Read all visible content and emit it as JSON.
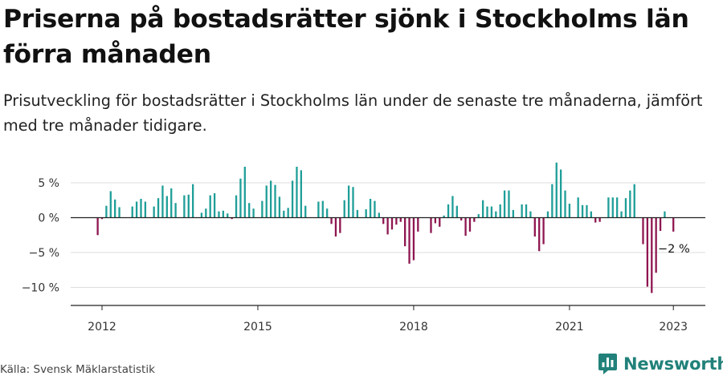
{
  "title": "Priserna på bostadsrätter sjönk i Stockholms län förra månaden",
  "subtitle": "Prisutveckling för bostadsrätter i Stockholms län under de senaste tre månaderna, jämfört med tre månader tidigare.",
  "source": "Källa: Svensk Mäklarstatistik",
  "brand": {
    "name": "Newsworthy",
    "logo_icon": "newsworthy-logo-icon"
  },
  "colors": {
    "positive": "#1f9e98",
    "negative": "#8e1650",
    "axis": "#222222",
    "grid": "#dddddd"
  },
  "chart_data": {
    "type": "bar",
    "ylabel": "",
    "xlabel": "",
    "unit": "%",
    "ylim": [
      -12,
      8.5
    ],
    "y_ticks": [
      5,
      0,
      -5,
      -10
    ],
    "y_tick_labels": [
      "5 %",
      "0 %",
      "−5 %",
      "−10 %"
    ],
    "x_ticks": [
      "2012-01",
      "2015-01",
      "2018-01",
      "2021-01",
      "2023-01"
    ],
    "x_tick_labels": [
      "2012",
      "2015",
      "2018",
      "2021",
      "2023"
    ],
    "start_month": "2011-12",
    "end_month": "2023-02",
    "annotation": {
      "text": "−2 %",
      "month": "2023-01"
    },
    "values": [
      -2.5,
      -0.2,
      1.7,
      3.8,
      2.6,
      1.5,
      null,
      null,
      1.6,
      2.3,
      2.7,
      2.3,
      null,
      1.6,
      2.8,
      4.6,
      3.1,
      4.2,
      2.1,
      null,
      3.2,
      3.3,
      4.8,
      null,
      0.7,
      1.3,
      3.2,
      3.5,
      0.9,
      1.0,
      0.6,
      -0.2,
      3.2,
      5.6,
      7.3,
      2.1,
      1.3,
      null,
      2.4,
      4.6,
      5.3,
      4.7,
      3.0,
      1.0,
      1.4,
      5.3,
      7.3,
      6.8,
      1.7,
      null,
      null,
      2.3,
      2.4,
      1.3,
      -0.9,
      -2.7,
      -2.2,
      2.5,
      4.6,
      4.4,
      1.1,
      null,
      1.2,
      2.7,
      2.4,
      0.7,
      -0.9,
      -2.4,
      -1.7,
      -1.0,
      -0.6,
      -4.1,
      -6.6,
      -6.1,
      -2.0,
      null,
      null,
      -2.2,
      -0.8,
      -1.3,
      0.3,
      1.9,
      3.1,
      1.7,
      -0.4,
      -2.6,
      -2.0,
      -0.6,
      0.5,
      2.5,
      1.6,
      1.6,
      0.9,
      1.9,
      3.9,
      3.9,
      1.1,
      null,
      1.9,
      1.9,
      0.9,
      -2.7,
      -4.8,
      -3.8,
      0.9,
      4.8,
      7.9,
      6.9,
      3.9,
      2.0,
      null,
      2.9,
      1.8,
      1.8,
      0.9,
      -0.7,
      -0.6,
      null,
      2.9,
      2.9,
      2.9,
      0.9,
      2.8,
      3.9,
      4.8,
      null,
      -3.8,
      -9.9,
      -10.8,
      -7.9,
      -1.9,
      0.9,
      null,
      -2.0
    ]
  }
}
